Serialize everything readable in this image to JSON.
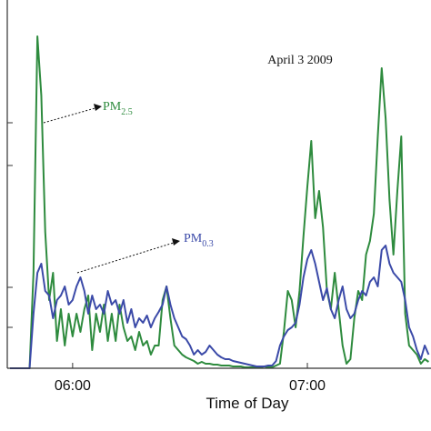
{
  "chart_data": {
    "type": "line",
    "xlabel": "Time of Day",
    "xlim": [
      343.3,
      451.6
    ],
    "xticks": [
      {
        "value": 360,
        "label": "06:00"
      },
      {
        "value": 420,
        "label": "07:00"
      }
    ],
    "ylim": [
      0,
      405
    ],
    "yticks": [
      45,
      89,
      223,
      270
    ],
    "annotations": [
      {
        "text": "April 3 2009"
      },
      {
        "text": "PM",
        "sub": "2.5",
        "color": "#2e8b3e"
      },
      {
        "text": "PM",
        "sub": "0.3",
        "color": "#3b4aa8"
      }
    ],
    "x": [
      344,
      345,
      346,
      347,
      348,
      349,
      350,
      351,
      352,
      353,
      354,
      355,
      356,
      357,
      358,
      359,
      360,
      361,
      362,
      363,
      364,
      365,
      366,
      367,
      368,
      369,
      370,
      371,
      372,
      373,
      374,
      375,
      376,
      377,
      378,
      379,
      380,
      381,
      382,
      383,
      384,
      385,
      386,
      387,
      388,
      389,
      390,
      391,
      392,
      393,
      394,
      395,
      396,
      397,
      398,
      399,
      400,
      401,
      402,
      403,
      404,
      405,
      406,
      407,
      408,
      409,
      410,
      411,
      412,
      413,
      414,
      415,
      416,
      417,
      418,
      419,
      420,
      421,
      422,
      423,
      424,
      425,
      426,
      427,
      428,
      429,
      430,
      431,
      432,
      433,
      434,
      435,
      436,
      437,
      438,
      439,
      440,
      441,
      442,
      443,
      444,
      445,
      446,
      447,
      448,
      449,
      450,
      451
    ],
    "series": [
      {
        "name": "PM2.5",
        "color": "#2e8b3e",
        "values": [
          0,
          0,
          0,
          0,
          0,
          0,
          105,
          365,
          300,
          150,
          75,
          105,
          30,
          65,
          25,
          60,
          35,
          60,
          40,
          65,
          80,
          20,
          60,
          40,
          70,
          30,
          60,
          30,
          70,
          45,
          30,
          35,
          20,
          40,
          25,
          30,
          15,
          25,
          25,
          75,
          90,
          55,
          25,
          20,
          15,
          12,
          10,
          8,
          5,
          7,
          5,
          5,
          4,
          4,
          3,
          3,
          3,
          2,
          2,
          2,
          1,
          1,
          1,
          1,
          1,
          2,
          1,
          1,
          3,
          5,
          40,
          85,
          75,
          45,
          85,
          145,
          200,
          250,
          165,
          195,
          155,
          85,
          65,
          105,
          65,
          25,
          5,
          10,
          55,
          85,
          75,
          125,
          140,
          170,
          255,
          330,
          275,
          185,
          125,
          195,
          255,
          60,
          25,
          20,
          15,
          5,
          10,
          7
        ]
      },
      {
        "name": "PM0.3",
        "color": "#3b4aa8",
        "values": [
          0,
          0,
          0,
          0,
          0,
          0,
          60,
          105,
          115,
          85,
          80,
          55,
          75,
          80,
          90,
          70,
          75,
          90,
          100,
          85,
          60,
          80,
          65,
          70,
          60,
          85,
          70,
          75,
          60,
          75,
          50,
          65,
          45,
          55,
          50,
          58,
          45,
          55,
          62,
          70,
          90,
          70,
          55,
          45,
          35,
          32,
          25,
          15,
          20,
          15,
          18,
          25,
          20,
          15,
          12,
          10,
          10,
          8,
          7,
          6,
          5,
          4,
          3,
          2,
          2,
          2,
          3,
          3,
          8,
          25,
          35,
          42,
          45,
          50,
          70,
          100,
          120,
          130,
          115,
          95,
          75,
          88,
          65,
          55,
          75,
          90,
          65,
          55,
          60,
          75,
          85,
          80,
          95,
          100,
          90,
          130,
          135,
          115,
          105,
          100,
          95,
          75,
          45,
          35,
          20,
          10,
          25,
          15
        ]
      }
    ]
  }
}
